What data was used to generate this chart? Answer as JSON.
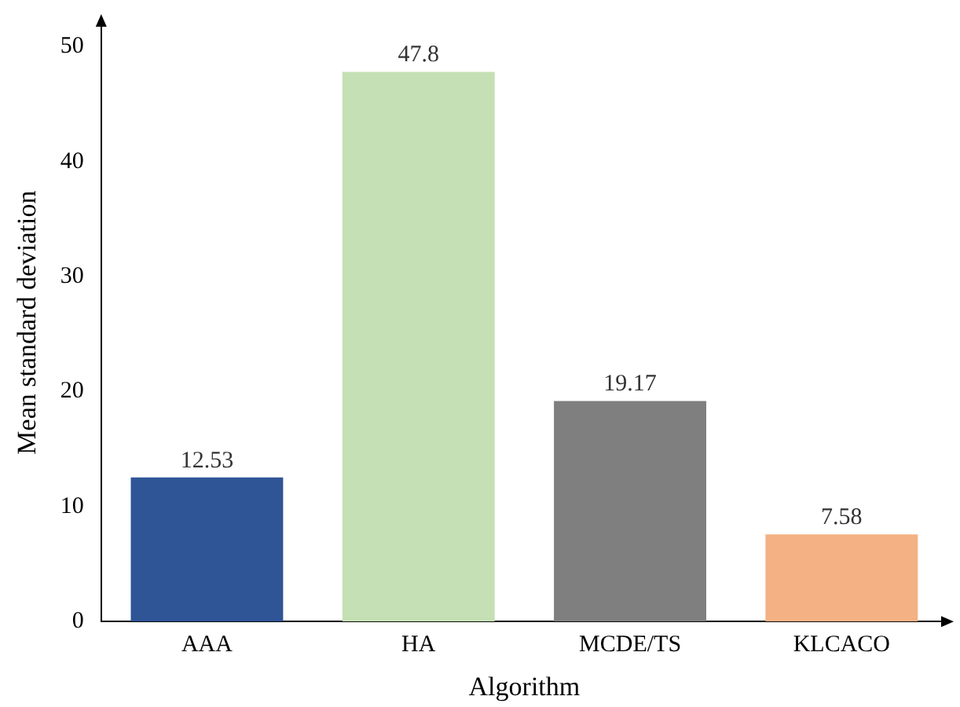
{
  "chart_data": {
    "type": "bar",
    "xlabel": "Algorithm",
    "ylabel": "Mean standard deviation",
    "categories": [
      "AAA",
      "HA",
      "MCDE/TS",
      "KLCACO"
    ],
    "values": [
      12.53,
      47.8,
      19.17,
      7.58
    ],
    "colors": [
      "#2f5597",
      "#c5e0b4",
      "#7f7f7f",
      "#f4b183"
    ],
    "value_labels": [
      "12.53",
      "47.8",
      "19.17",
      "7.58"
    ],
    "ylim": [
      0,
      52
    ],
    "yticks": [
      0,
      10,
      20,
      30,
      40,
      50
    ],
    "grid": false,
    "legend": false
  }
}
